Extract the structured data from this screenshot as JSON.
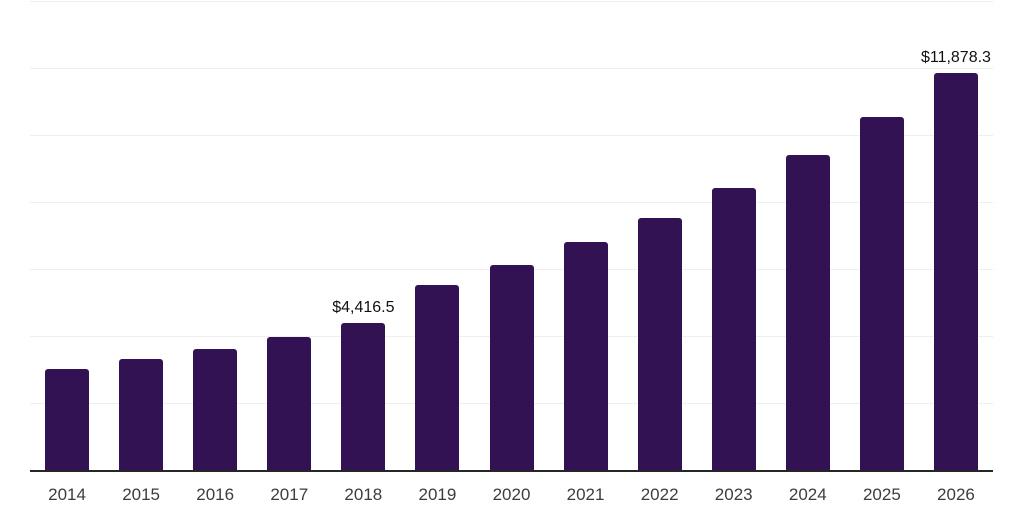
{
  "chart_data": {
    "type": "bar",
    "title": "",
    "xlabel": "",
    "ylabel": "",
    "categories": [
      "2014",
      "2015",
      "2016",
      "2017",
      "2018",
      "2019",
      "2020",
      "2021",
      "2022",
      "2023",
      "2024",
      "2025",
      "2026"
    ],
    "values": [
      3050,
      3340,
      3640,
      4000,
      4416.5,
      5550,
      6150,
      6840,
      7550,
      8450,
      9440,
      10570,
      11878.3
    ],
    "labeled_points": [
      {
        "category": "2018",
        "value": 4416.5,
        "text": "$4,416.5"
      },
      {
        "category": "2026",
        "value": 11878.3,
        "text": "$11,878.3"
      }
    ],
    "ylim": [
      0,
      14000
    ],
    "gridline_step": 2000,
    "grid": "horizontal",
    "y_axis_tick_labels": "none",
    "legend": "none",
    "colors": {
      "bar": "#321252",
      "axis": "#262626",
      "grid": "#efefef",
      "data_label": "#111111",
      "tick_label": "#3d3d3d",
      "background": "#ffffff"
    }
  }
}
